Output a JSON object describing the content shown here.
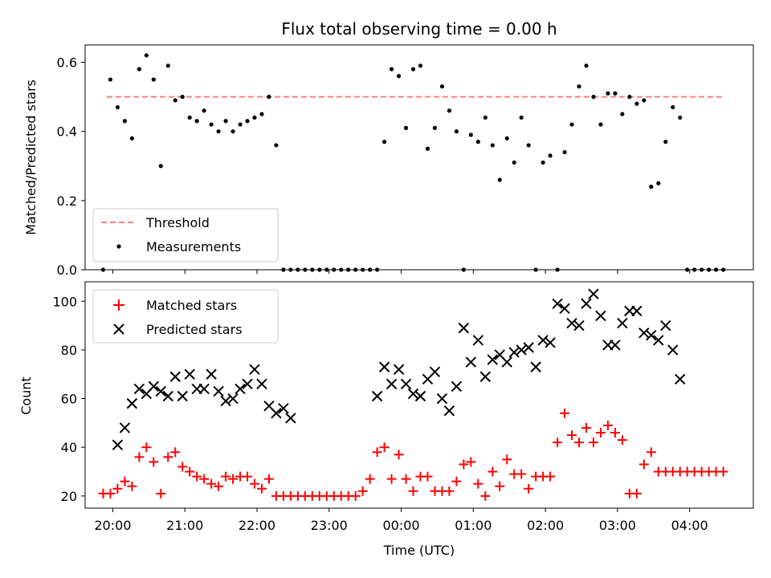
{
  "chart_data": [
    {
      "type": "scatter",
      "title": "Flux total observing time = 0.00 h",
      "xlabel": "",
      "ylabel": "Matched/Predicted stars",
      "xlim": [
        "19:37",
        "04:53"
      ],
      "ylim": [
        0,
        0.65
      ],
      "yticks": [
        "0.0",
        "0.2",
        "0.4",
        "0.6"
      ],
      "yticks_values": [
        0,
        0.2,
        0.4,
        0.6
      ],
      "grid": false,
      "legend": {
        "placement": "lower-left",
        "entries": [
          "Threshold",
          "Measurements"
        ]
      },
      "threshold": {
        "name": "Threshold",
        "value": 0.5,
        "x_range": [
          "19:55",
          "04:28"
        ],
        "color": "#ff7f7f",
        "style": "dashed"
      },
      "series": [
        {
          "name": "Measurements",
          "marker": "dot",
          "color": "#000000",
          "x": [
            "19:52",
            "19:58",
            "20:04",
            "20:10",
            "20:16",
            "20:22",
            "20:28",
            "20:34",
            "20:40",
            "20:46",
            "20:52",
            "20:58",
            "21:04",
            "21:10",
            "21:16",
            "21:22",
            "21:28",
            "21:34",
            "21:40",
            "21:46",
            "21:52",
            "21:58",
            "22:04",
            "22:10",
            "22:16",
            "22:22",
            "22:28",
            "22:34",
            "22:40",
            "22:46",
            "22:52",
            "22:58",
            "23:04",
            "23:10",
            "23:16",
            "23:22",
            "23:28",
            "23:34",
            "23:40",
            "23:46",
            "23:52",
            "23:58",
            "00:04",
            "00:10",
            "00:16",
            "00:22",
            "00:28",
            "00:34",
            "00:40",
            "00:46",
            "00:52",
            "00:58",
            "01:04",
            "01:10",
            "01:16",
            "01:22",
            "01:28",
            "01:34",
            "01:40",
            "01:46",
            "01:52",
            "01:58",
            "02:04",
            "02:10",
            "02:16",
            "02:22",
            "02:28",
            "02:34",
            "02:40",
            "02:46",
            "02:52",
            "02:58",
            "03:04",
            "03:10",
            "03:16",
            "03:22",
            "03:28",
            "03:34",
            "03:40",
            "03:46",
            "03:52",
            "03:58",
            "04:04",
            "04:10",
            "04:16",
            "04:22",
            "04:28"
          ],
          "y": [
            0,
            0.55,
            0.47,
            0.43,
            0.38,
            0.58,
            0.62,
            0.55,
            0.3,
            0.59,
            0.49,
            0.5,
            0.44,
            0.43,
            0.46,
            0.42,
            0.4,
            0.43,
            0.4,
            0.42,
            0.43,
            0.44,
            0.45,
            0.5,
            0.36,
            0,
            0,
            0,
            0,
            0,
            0,
            0,
            0,
            0,
            0,
            0,
            0,
            0,
            0,
            0.37,
            0.58,
            0.56,
            0.41,
            0.58,
            0.59,
            0.35,
            0.41,
            0.53,
            0.46,
            0.4,
            0,
            0.39,
            0.37,
            0.44,
            0.36,
            0.26,
            0.38,
            0.31,
            0.44,
            0.36,
            0,
            0.31,
            0.33,
            0,
            0.34,
            0.42,
            0.53,
            0.59,
            0.5,
            0.42,
            0.51,
            0.51,
            0.45,
            0.5,
            0.48,
            0.49,
            0.24,
            0.25,
            0.37,
            0.47,
            0.44,
            0,
            0,
            0,
            0,
            0,
            0
          ]
        }
      ]
    },
    {
      "type": "scatter",
      "title": "",
      "xlabel": "Time (UTC)",
      "ylabel": "Count",
      "xlim": [
        "19:37",
        "04:53"
      ],
      "ylim": [
        15,
        108
      ],
      "yticks": [
        "20",
        "40",
        "60",
        "80",
        "100"
      ],
      "yticks_values": [
        20,
        40,
        60,
        80,
        100
      ],
      "xticks": [
        "20:00",
        "21:00",
        "22:00",
        "23:00",
        "00:00",
        "01:00",
        "02:00",
        "03:00",
        "04:00"
      ],
      "grid": false,
      "legend": {
        "placement": "upper-left",
        "entries": [
          "Matched stars",
          "Predicted stars"
        ]
      },
      "series": [
        {
          "name": "Matched stars",
          "marker": "plus",
          "color": "#ff0000",
          "x": [
            "19:52",
            "19:58",
            "20:04",
            "20:10",
            "20:16",
            "20:22",
            "20:28",
            "20:34",
            "20:40",
            "20:46",
            "20:52",
            "20:58",
            "21:04",
            "21:10",
            "21:16",
            "21:22",
            "21:28",
            "21:34",
            "21:40",
            "21:46",
            "21:52",
            "21:58",
            "22:04",
            "22:10",
            "22:16",
            "22:22",
            "22:28",
            "22:34",
            "22:40",
            "22:46",
            "22:52",
            "22:58",
            "23:04",
            "23:10",
            "23:16",
            "23:22",
            "23:28",
            "23:34",
            "23:40",
            "23:46",
            "23:52",
            "23:58",
            "00:04",
            "00:10",
            "00:16",
            "00:22",
            "00:28",
            "00:34",
            "00:40",
            "00:46",
            "00:52",
            "00:58",
            "01:04",
            "01:10",
            "01:16",
            "01:22",
            "01:28",
            "01:34",
            "01:40",
            "01:46",
            "01:52",
            "01:58",
            "02:04",
            "02:10",
            "02:16",
            "02:22",
            "02:28",
            "02:34",
            "02:40",
            "02:46",
            "02:52",
            "02:58",
            "03:04",
            "03:10",
            "03:16",
            "03:22",
            "03:28",
            "03:34",
            "03:40",
            "03:46",
            "03:52",
            "03:58",
            "04:04",
            "04:10",
            "04:16",
            "04:22",
            "04:28"
          ],
          "y": [
            21,
            21,
            23,
            26,
            24,
            36,
            40,
            34,
            21,
            36,
            38,
            32,
            30,
            28,
            27,
            25,
            24,
            28,
            27,
            28,
            28,
            25,
            23,
            27,
            20,
            20,
            20,
            20,
            20,
            20,
            20,
            20,
            20,
            20,
            20,
            20,
            22,
            27,
            38,
            40,
            27,
            37,
            27,
            22,
            28,
            28,
            22,
            22,
            22,
            26,
            33,
            34,
            25,
            20,
            30,
            24,
            35,
            29,
            29,
            23,
            28,
            28,
            28,
            42,
            54,
            45,
            42,
            48,
            42,
            46,
            49,
            46,
            43,
            21,
            21,
            33,
            38,
            30,
            30,
            30,
            30,
            30,
            30,
            30,
            30,
            30,
            30
          ]
        },
        {
          "name": "Predicted stars",
          "marker": "x",
          "color": "#000000",
          "x": [
            "20:04",
            "20:10",
            "20:16",
            "20:22",
            "20:28",
            "20:34",
            "20:40",
            "20:46",
            "20:52",
            "20:58",
            "21:04",
            "21:10",
            "21:16",
            "21:22",
            "21:28",
            "21:34",
            "21:40",
            "21:46",
            "21:52",
            "21:58",
            "22:04",
            "22:10",
            "22:16",
            "22:22",
            "22:28",
            "23:40",
            "23:46",
            "23:52",
            "23:58",
            "00:04",
            "00:10",
            "00:16",
            "00:22",
            "00:28",
            "00:34",
            "00:40",
            "00:46",
            "00:52",
            "00:58",
            "01:04",
            "01:10",
            "01:16",
            "01:22",
            "01:28",
            "01:34",
            "01:40",
            "01:46",
            "01:52",
            "01:58",
            "02:04",
            "02:10",
            "02:16",
            "02:22",
            "02:28",
            "02:34",
            "02:40",
            "02:46",
            "02:52",
            "02:58",
            "03:04",
            "03:10",
            "03:16",
            "03:22",
            "03:28",
            "03:34",
            "03:40",
            "03:46",
            "03:52"
          ],
          "y": [
            41,
            48,
            58,
            64,
            62,
            65,
            63,
            61,
            69,
            61,
            70,
            64,
            64,
            70,
            63,
            59,
            60,
            64,
            66,
            72,
            66,
            57,
            54,
            56,
            52,
            61,
            73,
            66,
            72,
            66,
            62,
            61,
            68,
            71,
            60,
            55,
            65,
            89,
            75,
            84,
            69,
            76,
            78,
            75,
            79,
            80,
            81,
            73,
            84,
            83,
            99,
            97,
            91,
            90,
            99,
            103,
            94,
            82,
            82,
            91,
            96,
            96,
            87,
            86,
            84,
            90,
            80,
            68
          ]
        }
      ]
    }
  ]
}
